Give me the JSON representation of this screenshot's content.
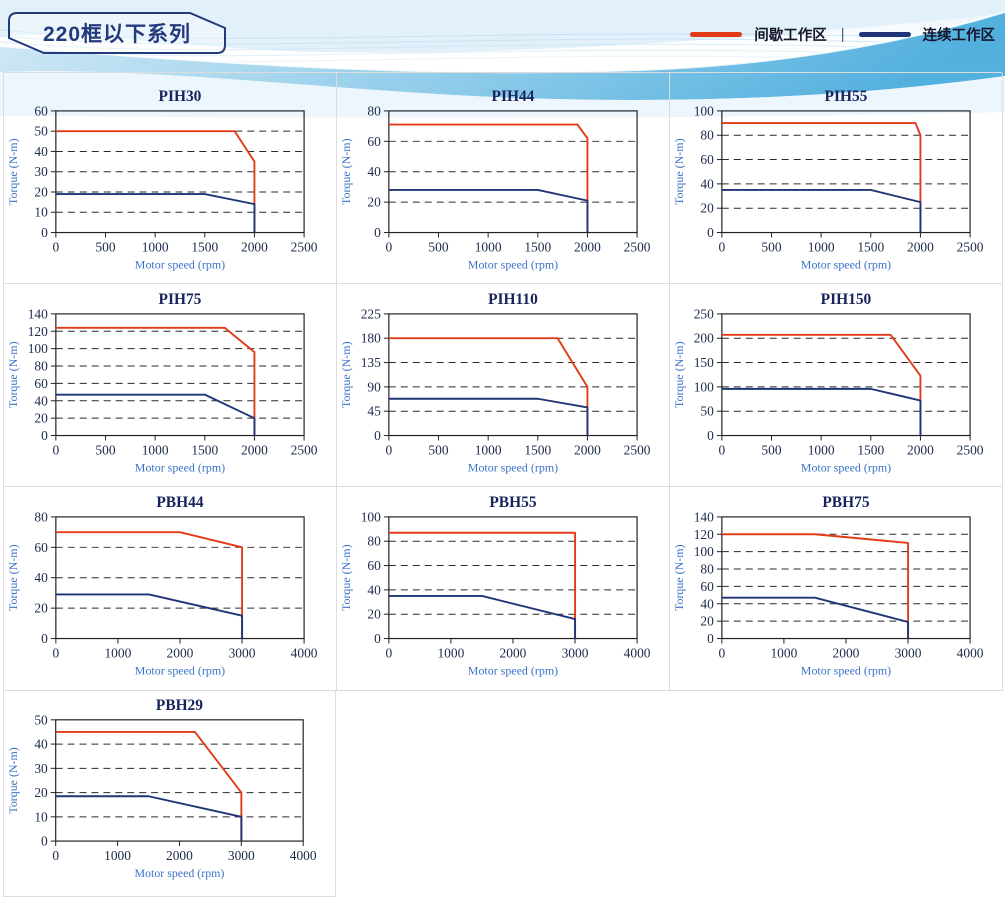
{
  "header": {
    "title": "220框以下系列"
  },
  "legend": {
    "items": [
      {
        "label": "间歇工作区",
        "key": "intermittent",
        "color": "#e23b17"
      },
      {
        "label": "连续工作区",
        "key": "continuous",
        "color": "#1f3575"
      }
    ],
    "divider": "|"
  },
  "colors": {
    "intermittent": "#e23b17",
    "continuous": "#1f3575",
    "grid_line": "#2a2a2a",
    "plot_border": "#222222",
    "tick_text": "#1c2b4a",
    "axis_text": "#3a72c8",
    "title_text": "#17235a"
  },
  "chart_data": [
    {
      "type": "line",
      "title": "PIH30",
      "xlabel": "Motor speed (rpm)",
      "ylabel": "Torque (N-m)",
      "xlim": [
        0,
        2500
      ],
      "xtick_step": 500,
      "ylim": [
        0,
        60
      ],
      "ytick_step": 10,
      "grid": "dashed-horizontal",
      "series": [
        {
          "name": "间歇工作区",
          "key": "intermittent",
          "points": [
            [
              0,
              50
            ],
            [
              1800,
              50
            ],
            [
              2000,
              35
            ],
            [
              2000,
              0
            ]
          ]
        },
        {
          "name": "连续工作区",
          "key": "continuous",
          "points": [
            [
              0,
              19
            ],
            [
              1500,
              19
            ],
            [
              2000,
              14
            ],
            [
              2000,
              0
            ]
          ]
        }
      ]
    },
    {
      "type": "line",
      "title": "PIH44",
      "xlabel": "Motor speed (rpm)",
      "ylabel": "Torque (N-m)",
      "xlim": [
        0,
        2500
      ],
      "xtick_step": 500,
      "ylim": [
        0,
        80
      ],
      "ytick_step": 20,
      "grid": "dashed-horizontal",
      "series": [
        {
          "name": "间歇工作区",
          "key": "intermittent",
          "points": [
            [
              0,
              71
            ],
            [
              1900,
              71
            ],
            [
              2000,
              62
            ],
            [
              2000,
              0
            ]
          ]
        },
        {
          "name": "连续工作区",
          "key": "continuous",
          "points": [
            [
              0,
              28
            ],
            [
              1500,
              28
            ],
            [
              2000,
              21
            ],
            [
              2000,
              0
            ]
          ]
        }
      ]
    },
    {
      "type": "line",
      "title": "PIH55",
      "xlabel": "Motor speed (rpm)",
      "ylabel": "Torque (N-m)",
      "xlim": [
        0,
        2500
      ],
      "xtick_step": 500,
      "ylim": [
        0,
        100
      ],
      "ytick_step": 20,
      "grid": "dashed-horizontal",
      "series": [
        {
          "name": "间歇工作区",
          "key": "intermittent",
          "points": [
            [
              0,
              90
            ],
            [
              1950,
              90
            ],
            [
              2000,
              80
            ],
            [
              2000,
              0
            ]
          ]
        },
        {
          "name": "连续工作区",
          "key": "continuous",
          "points": [
            [
              0,
              35
            ],
            [
              1500,
              35
            ],
            [
              2000,
              25
            ],
            [
              2000,
              0
            ]
          ]
        }
      ]
    },
    {
      "type": "line",
      "title": "PIH75",
      "xlabel": "Motor speed (rpm)",
      "ylabel": "Torque (N-m)",
      "xlim": [
        0,
        2500
      ],
      "xtick_step": 500,
      "ylim": [
        0,
        140
      ],
      "ytick_step": 20,
      "grid": "dashed-horizontal",
      "series": [
        {
          "name": "间歇工作区",
          "key": "intermittent",
          "points": [
            [
              0,
              124
            ],
            [
              1700,
              124
            ],
            [
              2000,
              96
            ],
            [
              2000,
              0
            ]
          ]
        },
        {
          "name": "连续工作区",
          "key": "continuous",
          "points": [
            [
              0,
              47
            ],
            [
              1500,
              47
            ],
            [
              2000,
              20
            ],
            [
              2000,
              0
            ]
          ]
        }
      ]
    },
    {
      "type": "line",
      "title": "PIH110",
      "xlabel": "Motor speed (rpm)",
      "ylabel": "Torque (N-m)",
      "xlim": [
        0,
        2500
      ],
      "xtick_step": 500,
      "ylim": [
        0,
        225
      ],
      "ytick_step": 45,
      "grid": "dashed-horizontal",
      "series": [
        {
          "name": "间歇工作区",
          "key": "intermittent",
          "points": [
            [
              0,
              180
            ],
            [
              1700,
              180
            ],
            [
              2000,
              90
            ],
            [
              2000,
              0
            ]
          ]
        },
        {
          "name": "连续工作区",
          "key": "continuous",
          "points": [
            [
              0,
              68
            ],
            [
              1500,
              68
            ],
            [
              2000,
              52
            ],
            [
              2000,
              0
            ]
          ]
        }
      ]
    },
    {
      "type": "line",
      "title": "PIH150",
      "xlabel": "Motor speed (rpm)",
      "ylabel": "Torque (N-m)",
      "xlim": [
        0,
        2500
      ],
      "xtick_step": 500,
      "ylim": [
        0,
        250
      ],
      "ytick_step": 50,
      "grid": "dashed-horizontal",
      "series": [
        {
          "name": "间歇工作区",
          "key": "intermittent",
          "points": [
            [
              0,
              207
            ],
            [
              1700,
              207
            ],
            [
              2000,
              123
            ],
            [
              2000,
              0
            ]
          ]
        },
        {
          "name": "连续工作区",
          "key": "continuous",
          "points": [
            [
              0,
              96
            ],
            [
              1500,
              96
            ],
            [
              2000,
              72
            ],
            [
              2000,
              0
            ]
          ]
        }
      ]
    },
    {
      "type": "line",
      "title": "PBH44",
      "xlabel": "Motor speed (rpm)",
      "ylabel": "Torque (N-m)",
      "xlim": [
        0,
        4000
      ],
      "xtick_step": 1000,
      "ylim": [
        0,
        80
      ],
      "ytick_step": 20,
      "grid": "dashed-horizontal",
      "series": [
        {
          "name": "间歇工作区",
          "key": "intermittent",
          "points": [
            [
              0,
              70
            ],
            [
              2000,
              70
            ],
            [
              3000,
              60
            ],
            [
              3000,
              0
            ]
          ]
        },
        {
          "name": "连续工作区",
          "key": "continuous",
          "points": [
            [
              0,
              29
            ],
            [
              1500,
              29
            ],
            [
              3000,
              15
            ],
            [
              3000,
              0
            ]
          ]
        }
      ]
    },
    {
      "type": "line",
      "title": "PBH55",
      "xlabel": "Motor speed (rpm)",
      "ylabel": "Torque (N-m)",
      "xlim": [
        0,
        4000
      ],
      "xtick_step": 1000,
      "ylim": [
        0,
        100
      ],
      "ytick_step": 20,
      "grid": "dashed-horizontal",
      "series": [
        {
          "name": "间歇工作区",
          "key": "intermittent",
          "points": [
            [
              0,
              87
            ],
            [
              3000,
              87
            ],
            [
              3000,
              0
            ]
          ]
        },
        {
          "name": "连续工作区",
          "key": "continuous",
          "points": [
            [
              0,
              35
            ],
            [
              1500,
              35
            ],
            [
              3000,
              16
            ],
            [
              3000,
              0
            ]
          ]
        }
      ]
    },
    {
      "type": "line",
      "title": "PBH75",
      "xlabel": "Motor speed (rpm)",
      "ylabel": "Torque (N-m)",
      "xlim": [
        0,
        4000
      ],
      "xtick_step": 1000,
      "ylim": [
        0,
        140
      ],
      "ytick_step": 20,
      "grid": "dashed-horizontal",
      "series": [
        {
          "name": "间歇工作区",
          "key": "intermittent",
          "points": [
            [
              0,
              120
            ],
            [
              1500,
              120
            ],
            [
              3000,
              110
            ],
            [
              3000,
              0
            ]
          ]
        },
        {
          "name": "连续工作区",
          "key": "continuous",
          "points": [
            [
              0,
              47
            ],
            [
              1500,
              47
            ],
            [
              3000,
              19
            ],
            [
              3000,
              0
            ]
          ]
        }
      ]
    },
    {
      "type": "line",
      "title": "PBH29",
      "xlabel": "Motor speed (rpm)",
      "ylabel": "Torque (N-m)",
      "xlim": [
        0,
        4000
      ],
      "xtick_step": 1000,
      "ylim": [
        0,
        50
      ],
      "ytick_step": 10,
      "grid": "dashed-horizontal",
      "series": [
        {
          "name": "间歇工作区",
          "key": "intermittent",
          "points": [
            [
              0,
              45
            ],
            [
              2250,
              45
            ],
            [
              3000,
              20
            ],
            [
              3000,
              0
            ]
          ]
        },
        {
          "name": "连续工作区",
          "key": "continuous",
          "points": [
            [
              0,
              18.5
            ],
            [
              1500,
              18.5
            ],
            [
              3000,
              10
            ],
            [
              3000,
              0
            ]
          ]
        }
      ]
    }
  ]
}
